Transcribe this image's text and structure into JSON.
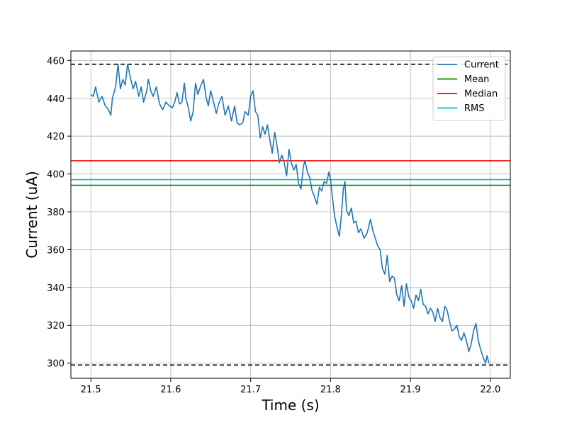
{
  "chart_data": {
    "type": "line",
    "xlabel": "Time (s)",
    "ylabel": "Current (uA)",
    "xlim": [
      21.475,
      22.025
    ],
    "ylim": [
      292,
      465
    ],
    "xticks": [
      21.5,
      21.6,
      21.7,
      21.8,
      21.9,
      22.0
    ],
    "yticks": [
      300,
      320,
      340,
      360,
      380,
      400,
      420,
      440,
      460
    ],
    "grid": true,
    "legend_position": "top-right",
    "series": [
      {
        "name": "Current",
        "color": "#1f77b4",
        "points": [
          [
            21.5,
            442
          ],
          [
            21.503,
            441
          ],
          [
            21.506,
            446
          ],
          [
            21.51,
            438
          ],
          [
            21.514,
            441
          ],
          [
            21.518,
            436
          ],
          [
            21.522,
            434
          ],
          [
            21.525,
            431
          ],
          [
            21.527,
            440
          ],
          [
            21.531,
            446
          ],
          [
            21.534,
            458
          ],
          [
            21.537,
            445
          ],
          [
            21.54,
            450
          ],
          [
            21.543,
            447
          ],
          [
            21.546,
            458
          ],
          [
            21.55,
            450
          ],
          [
            21.553,
            445
          ],
          [
            21.556,
            449
          ],
          [
            21.56,
            441
          ],
          [
            21.563,
            446
          ],
          [
            21.566,
            438
          ],
          [
            21.57,
            444
          ],
          [
            21.572,
            450
          ],
          [
            21.575,
            444
          ],
          [
            21.578,
            441
          ],
          [
            21.582,
            446
          ],
          [
            21.586,
            437
          ],
          [
            21.59,
            434
          ],
          [
            21.594,
            438
          ],
          [
            21.598,
            436
          ],
          [
            21.602,
            435
          ],
          [
            21.605,
            438
          ],
          [
            21.608,
            443
          ],
          [
            21.611,
            437
          ],
          [
            21.614,
            438
          ],
          [
            21.617,
            448
          ],
          [
            21.619,
            440
          ],
          [
            21.622,
            435
          ],
          [
            21.625,
            428
          ],
          [
            21.628,
            433
          ],
          [
            21.631,
            448
          ],
          [
            21.634,
            442
          ],
          [
            21.637,
            446
          ],
          [
            21.641,
            450
          ],
          [
            21.644,
            441
          ],
          [
            21.647,
            436
          ],
          [
            21.65,
            444
          ],
          [
            21.653,
            439
          ],
          [
            21.657,
            432
          ],
          [
            21.66,
            437
          ],
          [
            21.664,
            441
          ],
          [
            21.668,
            431
          ],
          [
            21.672,
            436
          ],
          [
            21.676,
            428
          ],
          [
            21.68,
            436
          ],
          [
            21.683,
            427
          ],
          [
            21.686,
            426
          ],
          [
            21.69,
            427
          ],
          [
            21.693,
            433
          ],
          [
            21.697,
            431
          ],
          [
            21.7,
            441
          ],
          [
            21.703,
            444
          ],
          [
            21.706,
            433
          ],
          [
            21.709,
            431
          ],
          [
            21.712,
            419
          ],
          [
            21.715,
            425
          ],
          [
            21.718,
            421
          ],
          [
            21.721,
            426
          ],
          [
            21.724,
            418
          ],
          [
            21.727,
            411
          ],
          [
            21.73,
            422
          ],
          [
            21.733,
            415
          ],
          [
            21.736,
            406
          ],
          [
            21.739,
            410
          ],
          [
            21.742,
            406
          ],
          [
            21.745,
            399
          ],
          [
            21.748,
            413
          ],
          [
            21.751,
            406
          ],
          [
            21.754,
            402
          ],
          [
            21.757,
            405
          ],
          [
            21.76,
            395
          ],
          [
            21.763,
            392
          ],
          [
            21.766,
            404
          ],
          [
            21.768,
            407
          ],
          [
            21.771,
            401
          ],
          [
            21.774,
            398
          ],
          [
            21.777,
            391
          ],
          [
            21.78,
            388
          ],
          [
            21.783,
            384
          ],
          [
            21.786,
            393
          ],
          [
            21.789,
            391
          ],
          [
            21.792,
            396
          ],
          [
            21.795,
            395
          ],
          [
            21.798,
            401
          ],
          [
            21.8,
            397
          ],
          [
            21.802,
            389
          ],
          [
            21.805,
            378
          ],
          [
            21.808,
            372
          ],
          [
            21.811,
            367
          ],
          [
            21.814,
            380
          ],
          [
            21.816,
            392
          ],
          [
            21.818,
            396
          ],
          [
            21.82,
            381
          ],
          [
            21.823,
            378
          ],
          [
            21.826,
            382
          ],
          [
            21.829,
            374
          ],
          [
            21.832,
            375
          ],
          [
            21.835,
            369
          ],
          [
            21.838,
            371
          ],
          [
            21.842,
            366
          ],
          [
            21.846,
            369
          ],
          [
            21.85,
            376
          ],
          [
            21.853,
            370
          ],
          [
            21.856,
            366
          ],
          [
            21.859,
            362
          ],
          [
            21.862,
            360
          ],
          [
            21.865,
            350
          ],
          [
            21.868,
            347
          ],
          [
            21.871,
            357
          ],
          [
            21.874,
            343
          ],
          [
            21.877,
            346
          ],
          [
            21.88,
            345
          ],
          [
            21.883,
            336
          ],
          [
            21.886,
            333
          ],
          [
            21.889,
            341
          ],
          [
            21.892,
            330
          ],
          [
            21.895,
            342
          ],
          [
            21.898,
            335
          ],
          [
            21.901,
            333
          ],
          [
            21.904,
            329
          ],
          [
            21.907,
            336
          ],
          [
            21.91,
            333
          ],
          [
            21.913,
            339
          ],
          [
            21.916,
            331
          ],
          [
            21.919,
            330
          ],
          [
            21.922,
            326
          ],
          [
            21.925,
            329
          ],
          [
            21.928,
            327
          ],
          [
            21.931,
            322
          ],
          [
            21.934,
            329
          ],
          [
            21.937,
            324
          ],
          [
            21.94,
            322
          ],
          [
            21.943,
            330
          ],
          [
            21.946,
            328
          ],
          [
            21.949,
            322
          ],
          [
            21.952,
            317
          ],
          [
            21.955,
            318
          ],
          [
            21.958,
            320
          ],
          [
            21.961,
            314
          ],
          [
            21.964,
            312
          ],
          [
            21.967,
            316
          ],
          [
            21.97,
            312
          ],
          [
            21.973,
            306
          ],
          [
            21.976,
            310
          ],
          [
            21.979,
            317
          ],
          [
            21.982,
            321
          ],
          [
            21.985,
            312
          ],
          [
            21.988,
            307
          ],
          [
            21.991,
            303
          ],
          [
            21.994,
            300
          ],
          [
            21.996,
            304
          ],
          [
            21.998,
            300
          ]
        ]
      },
      {
        "name": "Mean",
        "color": "#008000",
        "y": 394
      },
      {
        "name": "Median",
        "color": "#ff0000",
        "y": 407
      },
      {
        "name": "RMS",
        "color": "#00bfbf",
        "y": 397
      }
    ],
    "reference_lines": [
      {
        "y": 458,
        "style": "dashed",
        "color": "#000000"
      },
      {
        "y": 299,
        "style": "dashed",
        "color": "#000000"
      }
    ]
  }
}
